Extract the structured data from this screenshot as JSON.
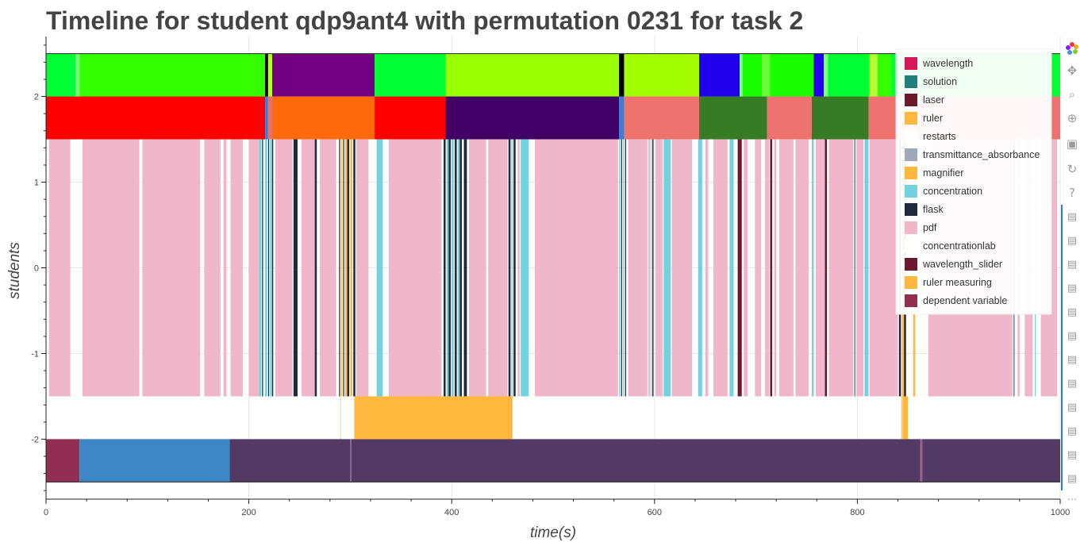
{
  "chart_data": {
    "type": "timeline",
    "title": "Timeline for student qdp9ant4 with permutation 0231 for task 2",
    "xlabel": "time(s)",
    "ylabel": "students",
    "xlim": [
      0,
      1000
    ],
    "ylim": [
      -2.7,
      2.7
    ],
    "x_ticks": [
      0,
      200,
      400,
      600,
      800,
      1000
    ],
    "y_ticks": [
      2,
      1,
      0,
      -1,
      -2
    ],
    "grid": true,
    "legend_position": "top-right",
    "legend": [
      {
        "label": "wavelength",
        "color": "#d6185a"
      },
      {
        "label": "solution",
        "color": "#217f7a"
      },
      {
        "label": "laser",
        "color": "#6b1a2e"
      },
      {
        "label": "ruler",
        "color": "#ffb83d"
      },
      {
        "label": "restarts",
        "color": "#ffffff"
      },
      {
        "label": "transmittance_absorbance",
        "color": "#9eaab9"
      },
      {
        "label": "magnifier",
        "color": "#ffb83d"
      },
      {
        "label": "concentration",
        "color": "#72d3de"
      },
      {
        "label": "flask",
        "color": "#1d2b3c"
      },
      {
        "label": "pdf",
        "color": "#f0b6c9"
      },
      {
        "label": "concentrationlab",
        "color": "#ffffff"
      },
      {
        "label": "wavelength_slider",
        "color": "#6b1a2e"
      },
      {
        "label": "ruler measuring",
        "color": "#ffb83d"
      },
      {
        "label": "dependent variable",
        "color": "#912e52"
      }
    ],
    "rows": [
      {
        "y0": 2.0,
        "y1": 2.5,
        "segments": [
          [
            0,
            29,
            "#00ff33"
          ],
          [
            29,
            33,
            "#7fff7f"
          ],
          [
            33,
            216,
            "#33ff00"
          ],
          [
            216,
            219,
            "#000000"
          ],
          [
            219,
            223,
            "#b2ff33"
          ],
          [
            223,
            324,
            "#730080"
          ],
          [
            324,
            394,
            "#00ff33"
          ],
          [
            394,
            565,
            "#99ff00"
          ],
          [
            565,
            570,
            "#000000"
          ],
          [
            570,
            644,
            "#a3ff00"
          ],
          [
            644,
            684,
            "#2200ee"
          ],
          [
            684,
            687,
            "#7fff7f"
          ],
          [
            687,
            706,
            "#1aff00"
          ],
          [
            706,
            714,
            "#66ff33"
          ],
          [
            714,
            757,
            "#1aff00"
          ],
          [
            757,
            767,
            "#2200ee"
          ],
          [
            767,
            771,
            "#7fff7f"
          ],
          [
            771,
            812,
            "#00ff33"
          ],
          [
            812,
            820,
            "#b2ff33"
          ],
          [
            820,
            833,
            "#33ff00"
          ],
          [
            833,
            1000,
            "#00ff33"
          ]
        ]
      },
      {
        "y0": 1.5,
        "y1": 2.0,
        "segments": [
          [
            0,
            216,
            "#ff0000"
          ],
          [
            216,
            219,
            "#3d7bd9"
          ],
          [
            219,
            223,
            "#f07060"
          ],
          [
            223,
            324,
            "#ff6a0d"
          ],
          [
            324,
            394,
            "#ff0000"
          ],
          [
            394,
            565,
            "#420066"
          ],
          [
            565,
            570,
            "#3d7bd9"
          ],
          [
            570,
            644,
            "#ee726e"
          ],
          [
            644,
            711,
            "#357c24"
          ],
          [
            711,
            755,
            "#ee726e"
          ],
          [
            755,
            811,
            "#357c24"
          ],
          [
            811,
            1000,
            "#ee726e"
          ]
        ]
      },
      {
        "y0": -1.5,
        "y1": 1.5,
        "segments": [
          [
            3,
            24,
            "#f0b6c9"
          ],
          [
            36,
            92,
            "#f0b6c9"
          ],
          [
            95,
            152,
            "#f0b6c9"
          ],
          [
            156,
            172,
            "#f0b6c9"
          ],
          [
            175,
            178,
            "#f0b6c9"
          ],
          [
            182,
            194,
            "#f0b6c9"
          ],
          [
            200,
            210,
            "#f0b6c9"
          ],
          [
            210,
            212,
            "#72d3de"
          ],
          [
            213,
            214,
            "#1d2b3c"
          ],
          [
            216,
            218,
            "#72d3de"
          ],
          [
            219,
            220,
            "#1d2b3c"
          ],
          [
            221,
            223,
            "#72d3de"
          ],
          [
            223,
            224,
            "#1d2b3c"
          ],
          [
            226,
            243,
            "#f0b6c9"
          ],
          [
            244,
            248,
            "#1d2b3c"
          ],
          [
            252,
            265,
            "#f0b6c9"
          ],
          [
            265,
            267,
            "#1d2b3c"
          ],
          [
            270,
            286,
            "#f0b6c9"
          ],
          [
            289,
            290,
            "#1d2b3c"
          ],
          [
            291,
            292,
            "#ffb83d"
          ],
          [
            293,
            294,
            "#1d2b3c"
          ],
          [
            295,
            297,
            "#ffb83d"
          ],
          [
            297,
            299,
            "#1d2b3c"
          ],
          [
            300,
            302,
            "#ffb83d"
          ],
          [
            303,
            305,
            "#1d2b3c"
          ],
          [
            306,
            318,
            "#f0b6c9"
          ],
          [
            326,
            332,
            "#72d3de"
          ],
          [
            338,
            390,
            "#f0b6c9"
          ],
          [
            392,
            394,
            "#1d2b3c"
          ],
          [
            395,
            397,
            "#72d3de"
          ],
          [
            397,
            399,
            "#1d2b3c"
          ],
          [
            400,
            402,
            "#72d3de"
          ],
          [
            403,
            405,
            "#1d2b3c"
          ],
          [
            406,
            408,
            "#72d3de"
          ],
          [
            408,
            410,
            "#1d2b3c"
          ],
          [
            412,
            415,
            "#1d2b3c"
          ],
          [
            417,
            434,
            "#f0b6c9"
          ],
          [
            436,
            455,
            "#f0b6c9"
          ],
          [
            456,
            458,
            "#1d2b3c"
          ],
          [
            459,
            460,
            "#72d3de"
          ],
          [
            461,
            463,
            "#1d2b3c"
          ],
          [
            465,
            467,
            "#f0b6c9"
          ],
          [
            468,
            476,
            "#72d3de"
          ],
          [
            482,
            564,
            "#f0b6c9"
          ],
          [
            565,
            566,
            "#72d3de"
          ],
          [
            567,
            568,
            "#1d2b3c"
          ],
          [
            569,
            570,
            "#72d3de"
          ],
          [
            571,
            572,
            "#1d2b3c"
          ],
          [
            574,
            593,
            "#f0b6c9"
          ],
          [
            594,
            596,
            "#f0b6c9"
          ],
          [
            597,
            598,
            "#72d3de"
          ],
          [
            598,
            599,
            "#1d2b3c"
          ],
          [
            601,
            608,
            "#f0b6c9"
          ],
          [
            609,
            616,
            "#72d3de"
          ],
          [
            617,
            637,
            "#f0b6c9"
          ],
          [
            643,
            647,
            "#72d3de"
          ],
          [
            650,
            653,
            "#f0b6c9"
          ],
          [
            658,
            672,
            "#f0b6c9"
          ],
          [
            674,
            678,
            "#72d3de"
          ],
          [
            682,
            686,
            "#6b1a2e"
          ],
          [
            688,
            692,
            "#f0b6c9"
          ],
          [
            699,
            705,
            "#f0b6c9"
          ],
          [
            709,
            713,
            "#f0b6c9"
          ],
          [
            714,
            716,
            "#6b1a2e"
          ],
          [
            718,
            720,
            "#f0b6c9"
          ],
          [
            723,
            737,
            "#f0b6c9"
          ],
          [
            739,
            752,
            "#f0b6c9"
          ],
          [
            755,
            757,
            "#72d3de"
          ],
          [
            759,
            768,
            "#f0b6c9"
          ],
          [
            768,
            770,
            "#6b1a2e"
          ],
          [
            772,
            796,
            "#f0b6c9"
          ],
          [
            797,
            798,
            "#217f7a"
          ],
          [
            799,
            806,
            "#f0b6c9"
          ],
          [
            807,
            811,
            "#72d3de"
          ],
          [
            812,
            840,
            "#f0b6c9"
          ],
          [
            841,
            843,
            "#1d2b3c"
          ],
          [
            844,
            846,
            "#ffb83d"
          ],
          [
            846,
            848,
            "#1d2b3c"
          ],
          [
            855,
            857,
            "#ffb83d"
          ],
          [
            870,
            953,
            "#f0b6c9"
          ],
          [
            954,
            955,
            "#217f7a"
          ],
          [
            958,
            960,
            "#f0b6c9"
          ],
          [
            965,
            973,
            "#f0b6c9"
          ],
          [
            975,
            976,
            "#72d3de"
          ],
          [
            981,
            997,
            "#f0b6c9"
          ]
        ]
      },
      {
        "y0": -2.0,
        "y1": -1.5,
        "segments": [
          [
            290,
            291,
            "#ffd9a0"
          ],
          [
            304,
            460,
            "#ffb83d"
          ],
          [
            843,
            845,
            "#ffd27a"
          ],
          [
            845,
            850,
            "#ffb83d"
          ]
        ]
      },
      {
        "y0": -2.5,
        "y1": -2.0,
        "segments": [
          [
            0,
            33,
            "#912e52"
          ],
          [
            33,
            181,
            "#3d87c7"
          ],
          [
            181,
            300,
            "#523a64"
          ],
          [
            300,
            301,
            "#8a6f95"
          ],
          [
            301,
            862,
            "#523a64"
          ],
          [
            862,
            864,
            "#9a5a8a"
          ],
          [
            864,
            1000,
            "#523a64"
          ]
        ]
      }
    ]
  },
  "toolbar": {
    "icons": [
      "bokeh-logo-icon",
      "pan-icon",
      "box-zoom-icon",
      "wheel-zoom-icon",
      "save-icon",
      "reset-icon",
      "help-icon",
      "hover-icon",
      "more-icon"
    ]
  }
}
